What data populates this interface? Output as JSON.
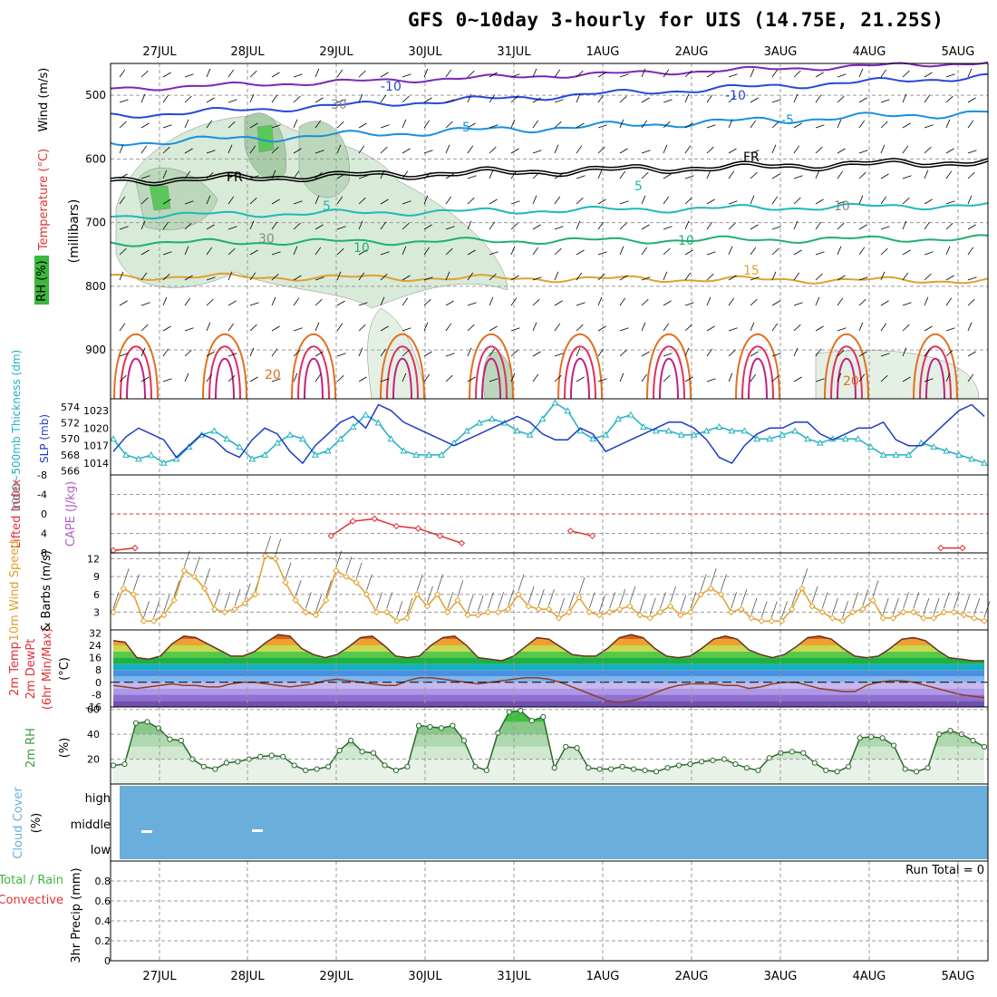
{
  "title": "GFS 0~10day 3-hourly for UIS (14.75E, 21.25S)",
  "colors": {
    "rh_green": "#3cb83c",
    "wind_blue": "#1e3cc8",
    "temp_red": "#e03030",
    "slp_blue": "#1e3cc8",
    "thick_cyan": "#20b0c0",
    "lifted_red": "#e03030",
    "cape_purple": "#b060c0",
    "wind10_orange": "#e0a030",
    "rh2m_green": "#3c9c3c",
    "cloud_blue": "#6aaedb",
    "precip_green": "#3cb83c",
    "precip_red": "#e03030"
  },
  "chart_data": [
    {
      "panel": "upper-air",
      "type": "heatmap",
      "dates": [
        "27JUL",
        "28JUL",
        "29JUL",
        "30JUL",
        "31JUL",
        "1AUG",
        "2AUG",
        "3AUG",
        "4AUG",
        "5AUG"
      ],
      "y_label": "(millibars)",
      "y_ticks": [
        500,
        600,
        700,
        800,
        900
      ],
      "ylim": [
        950,
        450
      ],
      "legend": {
        "rh": "RH (%)",
        "temperature": "Temperature (°C)",
        "wind": "Wind (m/s)"
      },
      "contour_labels": [
        "-10",
        "-10",
        "-5",
        "-5",
        "5",
        "5",
        "FR",
        "FR",
        "10",
        "10",
        "15",
        "20",
        "20",
        "30",
        "30",
        "10"
      ]
    },
    {
      "panel": "slp-thickness",
      "type": "line",
      "y_left_label": "1000~500mb Thickness (dm)",
      "y_left_ticks": [
        566,
        568,
        570,
        572,
        574
      ],
      "y_right_label": "SLP (mb)",
      "y_right_ticks": [
        1014,
        1017,
        1020,
        1023
      ],
      "ylim_slp": [
        1012,
        1025
      ],
      "ylim_thick": [
        565.5,
        575
      ],
      "series": [
        {
          "name": "SLP (mb)",
          "values": [
            1016,
            1018.5,
            1020,
            1019,
            1018,
            1015,
            1017,
            1019,
            1018,
            1016,
            1015,
            1018,
            1020,
            1019,
            1016,
            1014,
            1017,
            1019,
            1021,
            1022,
            1020,
            1024,
            1023,
            1021,
            1020,
            1019,
            1018,
            1017,
            1018,
            1019,
            1020,
            1021,
            1022,
            1021,
            1019,
            1018,
            1018,
            1020,
            1019,
            1016,
            1017,
            1018,
            1019,
            1020,
            1021,
            1021,
            1020,
            1018,
            1015,
            1014,
            1017,
            1019,
            1020,
            1020,
            1021,
            1021,
            1019,
            1018,
            1019,
            1020,
            1020,
            1021,
            1018,
            1017,
            1017,
            1019,
            1021,
            1023,
            1024,
            1022
          ]
        },
        {
          "name": "1000~500mb Thickness (dm)",
          "values": [
            570,
            568,
            567.5,
            568,
            567,
            567.5,
            569,
            570.5,
            571,
            570,
            569,
            567.5,
            568,
            569.5,
            570.5,
            570,
            568,
            568.5,
            570,
            571.5,
            573,
            572,
            570,
            568.5,
            568,
            568,
            568,
            569.5,
            571,
            572,
            572.5,
            572,
            571,
            570.5,
            572.5,
            574.5,
            573.5,
            571,
            570,
            570.5,
            572.5,
            573,
            571.5,
            571,
            571,
            570.5,
            570.5,
            571,
            571.5,
            571,
            571,
            570,
            570,
            570.5,
            571,
            570,
            569.5,
            570,
            570,
            570,
            569,
            568,
            568,
            568,
            569.5,
            569,
            568.5,
            568,
            567.5,
            567
          ]
        }
      ]
    },
    {
      "panel": "lifted-cape",
      "type": "line",
      "y_label_red": "Lifted Index",
      "y_label_purple": "CAPE (J/kg)",
      "y_ticks": [
        "-8",
        "-4",
        "0",
        "4",
        "8"
      ],
      "ylim": [
        -8,
        8
      ],
      "series": [
        {
          "name": "Lifted Index",
          "values": [
            7.5,
            7,
            null,
            null,
            null,
            null,
            null,
            null,
            null,
            null,
            4.5,
            1.5,
            1,
            2.5,
            3,
            4.5,
            6,
            null,
            null,
            null,
            null,
            3.5,
            4.5,
            null,
            null,
            null,
            null,
            null,
            null,
            null,
            null,
            null,
            null,
            null,
            null,
            null,
            null,
            null,
            7,
            7,
            null
          ]
        }
      ]
    },
    {
      "panel": "wind10m",
      "type": "line",
      "y_label_orange": "10m Wind Speed",
      "y_label_black": "& Barbs (m/s)",
      "y_ticks": [
        3,
        6,
        9,
        12
      ],
      "ylim": [
        0,
        13
      ],
      "series": [
        {
          "name": "10m Wind Speed",
          "values": [
            3,
            7,
            6,
            1.5,
            1.5,
            2.5,
            5,
            10,
            9,
            7,
            3.5,
            3,
            3.5,
            4.5,
            6,
            12.5,
            12,
            8,
            5,
            3,
            2.5,
            5,
            10,
            9,
            8,
            6,
            3,
            3,
            1.5,
            2,
            6,
            4,
            6,
            3,
            5,
            2.5,
            2.5,
            3,
            3,
            3.5,
            6,
            4,
            3.5,
            3.5,
            2,
            3,
            5.5,
            3,
            2.5,
            3,
            3.5,
            4,
            2.5,
            2,
            3,
            4,
            2.5,
            3,
            6,
            7,
            6,
            3,
            3.5,
            2,
            1.5,
            1.5,
            1.5,
            3.5,
            7,
            4,
            3,
            2,
            1.5,
            3,
            3.5,
            5,
            2,
            2,
            3,
            3,
            2,
            2,
            3,
            3,
            2.5,
            2,
            1.5
          ]
        }
      ]
    },
    {
      "panel": "temp2m",
      "type": "area",
      "y_label": "2m Temp 2m DewPt (6hr Min/Max) (°C)",
      "y_ticks": [
        "-16",
        "-8",
        "0",
        "8",
        "16",
        "24",
        "32"
      ],
      "ylim": [
        -16,
        34
      ],
      "series": [
        {
          "name": "2m Temp",
          "values": [
            27,
            26,
            16,
            15,
            17,
            25,
            30,
            29,
            25,
            21,
            17,
            17,
            20,
            26,
            31,
            30,
            22,
            18,
            16,
            18,
            23,
            29,
            30,
            24,
            17,
            16,
            17,
            24,
            29,
            30,
            24,
            16,
            15,
            14,
            17,
            23,
            29,
            28,
            23,
            18,
            17,
            17,
            22,
            29,
            31,
            29,
            22,
            17,
            16,
            17,
            22,
            28,
            30,
            28,
            21,
            18,
            16,
            18,
            23,
            29,
            30,
            28,
            22,
            17,
            16,
            17,
            22,
            28,
            29,
            27,
            21,
            16,
            15,
            14,
            14
          ]
        },
        {
          "name": "2m DewPt",
          "values": [
            -2,
            -3,
            -4,
            -3,
            -2,
            -1,
            -2,
            -2,
            -3,
            -3,
            -1,
            0,
            0,
            -1,
            -2,
            -3,
            -2,
            -1,
            1,
            2,
            1,
            0,
            -1,
            -2,
            -2,
            1,
            3,
            3,
            2,
            1,
            0,
            -1,
            0,
            1,
            2,
            3,
            3,
            2,
            0,
            -3,
            -6,
            -9,
            -12,
            -13,
            -12,
            -10,
            -7,
            -4,
            -2,
            -1,
            -1,
            -1,
            -2,
            -2,
            -4,
            -3,
            -1,
            0,
            0,
            -2,
            -4,
            -5,
            -6,
            -6,
            -2,
            0,
            1,
            1,
            0,
            -2,
            -4,
            -6,
            -8,
            -9,
            -10
          ]
        }
      ]
    },
    {
      "panel": "rh2m",
      "type": "area",
      "y_label": "2m RH (%)",
      "y_ticks": [
        20,
        40,
        60
      ],
      "ylim": [
        0,
        62
      ],
      "series": [
        {
          "name": "2m RH",
          "values": [
            15,
            16,
            49,
            50,
            45,
            36,
            35,
            20,
            14,
            12,
            17,
            18,
            20,
            22,
            23,
            22,
            15,
            11,
            12,
            14,
            27,
            35,
            26,
            25,
            15,
            11,
            14,
            47,
            46,
            45,
            47,
            35,
            14,
            11,
            41,
            58,
            59,
            51,
            54,
            13,
            30,
            29,
            13,
            12,
            12,
            14,
            12,
            11,
            10,
            13,
            15,
            16,
            18,
            19,
            20,
            16,
            13,
            11,
            21,
            25,
            26,
            25,
            17,
            11,
            10,
            14,
            37,
            38,
            37,
            31,
            12,
            10,
            13,
            40,
            43,
            40,
            35,
            30
          ]
        }
      ]
    },
    {
      "panel": "cloud",
      "type": "heatmap",
      "y_label": "Cloud Cover (%)",
      "y_ticks": [
        "high",
        "middle",
        "low"
      ]
    },
    {
      "panel": "precip",
      "type": "bar",
      "y_label_green": "Total / Rain",
      "y_label_red": "Convective",
      "y_label_black": "3hr Precip (mm)",
      "y_ticks": [
        "0",
        "0.2",
        "0.4",
        "0.6",
        "0.8"
      ],
      "ylim": [
        0,
        1
      ],
      "annotation": "Run Total = 0",
      "values": []
    }
  ]
}
